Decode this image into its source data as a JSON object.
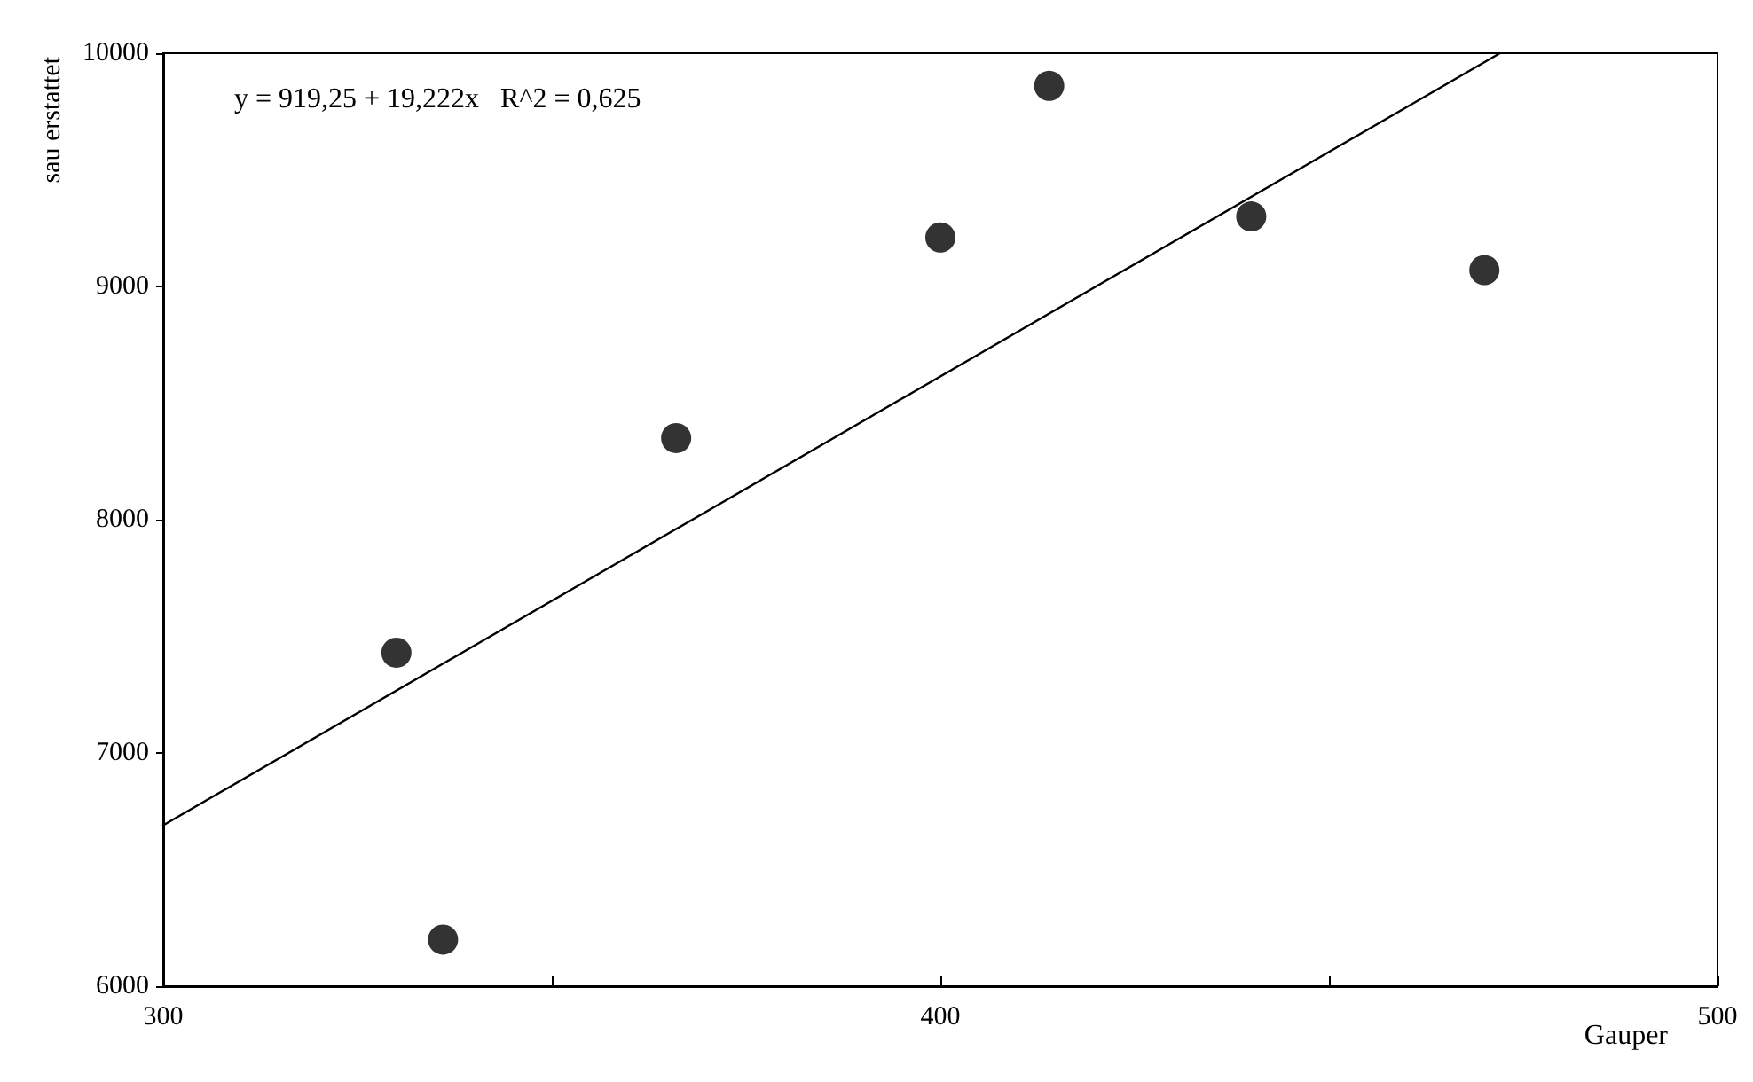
{
  "chart_data": {
    "type": "scatter",
    "xlabel": "Gauper",
    "ylabel": "sau erstattet",
    "annotations": [
      "y = 919,25 + 19,222x   R^2 = 0,625"
    ],
    "series": [
      {
        "color": "#000000",
        "x": [
          330,
          336,
          366,
          400,
          414,
          440,
          470
        ],
        "values": [
          7430,
          6200,
          8350,
          9210,
          9860,
          9300,
          9070
        ],
        "marker": "circle"
      },
      {
        "type": "line",
        "color": "#000000",
        "x": [
          300,
          472
        ],
        "values": [
          6690,
          10000
        ],
        "marker": "none",
        "line_style": "solid"
      }
    ],
    "xlim": [
      300,
      500
    ],
    "xticks": [
      300,
      {
        "value": 350,
        "label": null
      },
      400,
      {
        "value": 450,
        "label": null
      },
      500
    ],
    "ylim": [
      6000,
      10000
    ],
    "yticks": [
      6000,
      7000,
      8000,
      9000,
      10000
    ],
    "grid": false
  }
}
